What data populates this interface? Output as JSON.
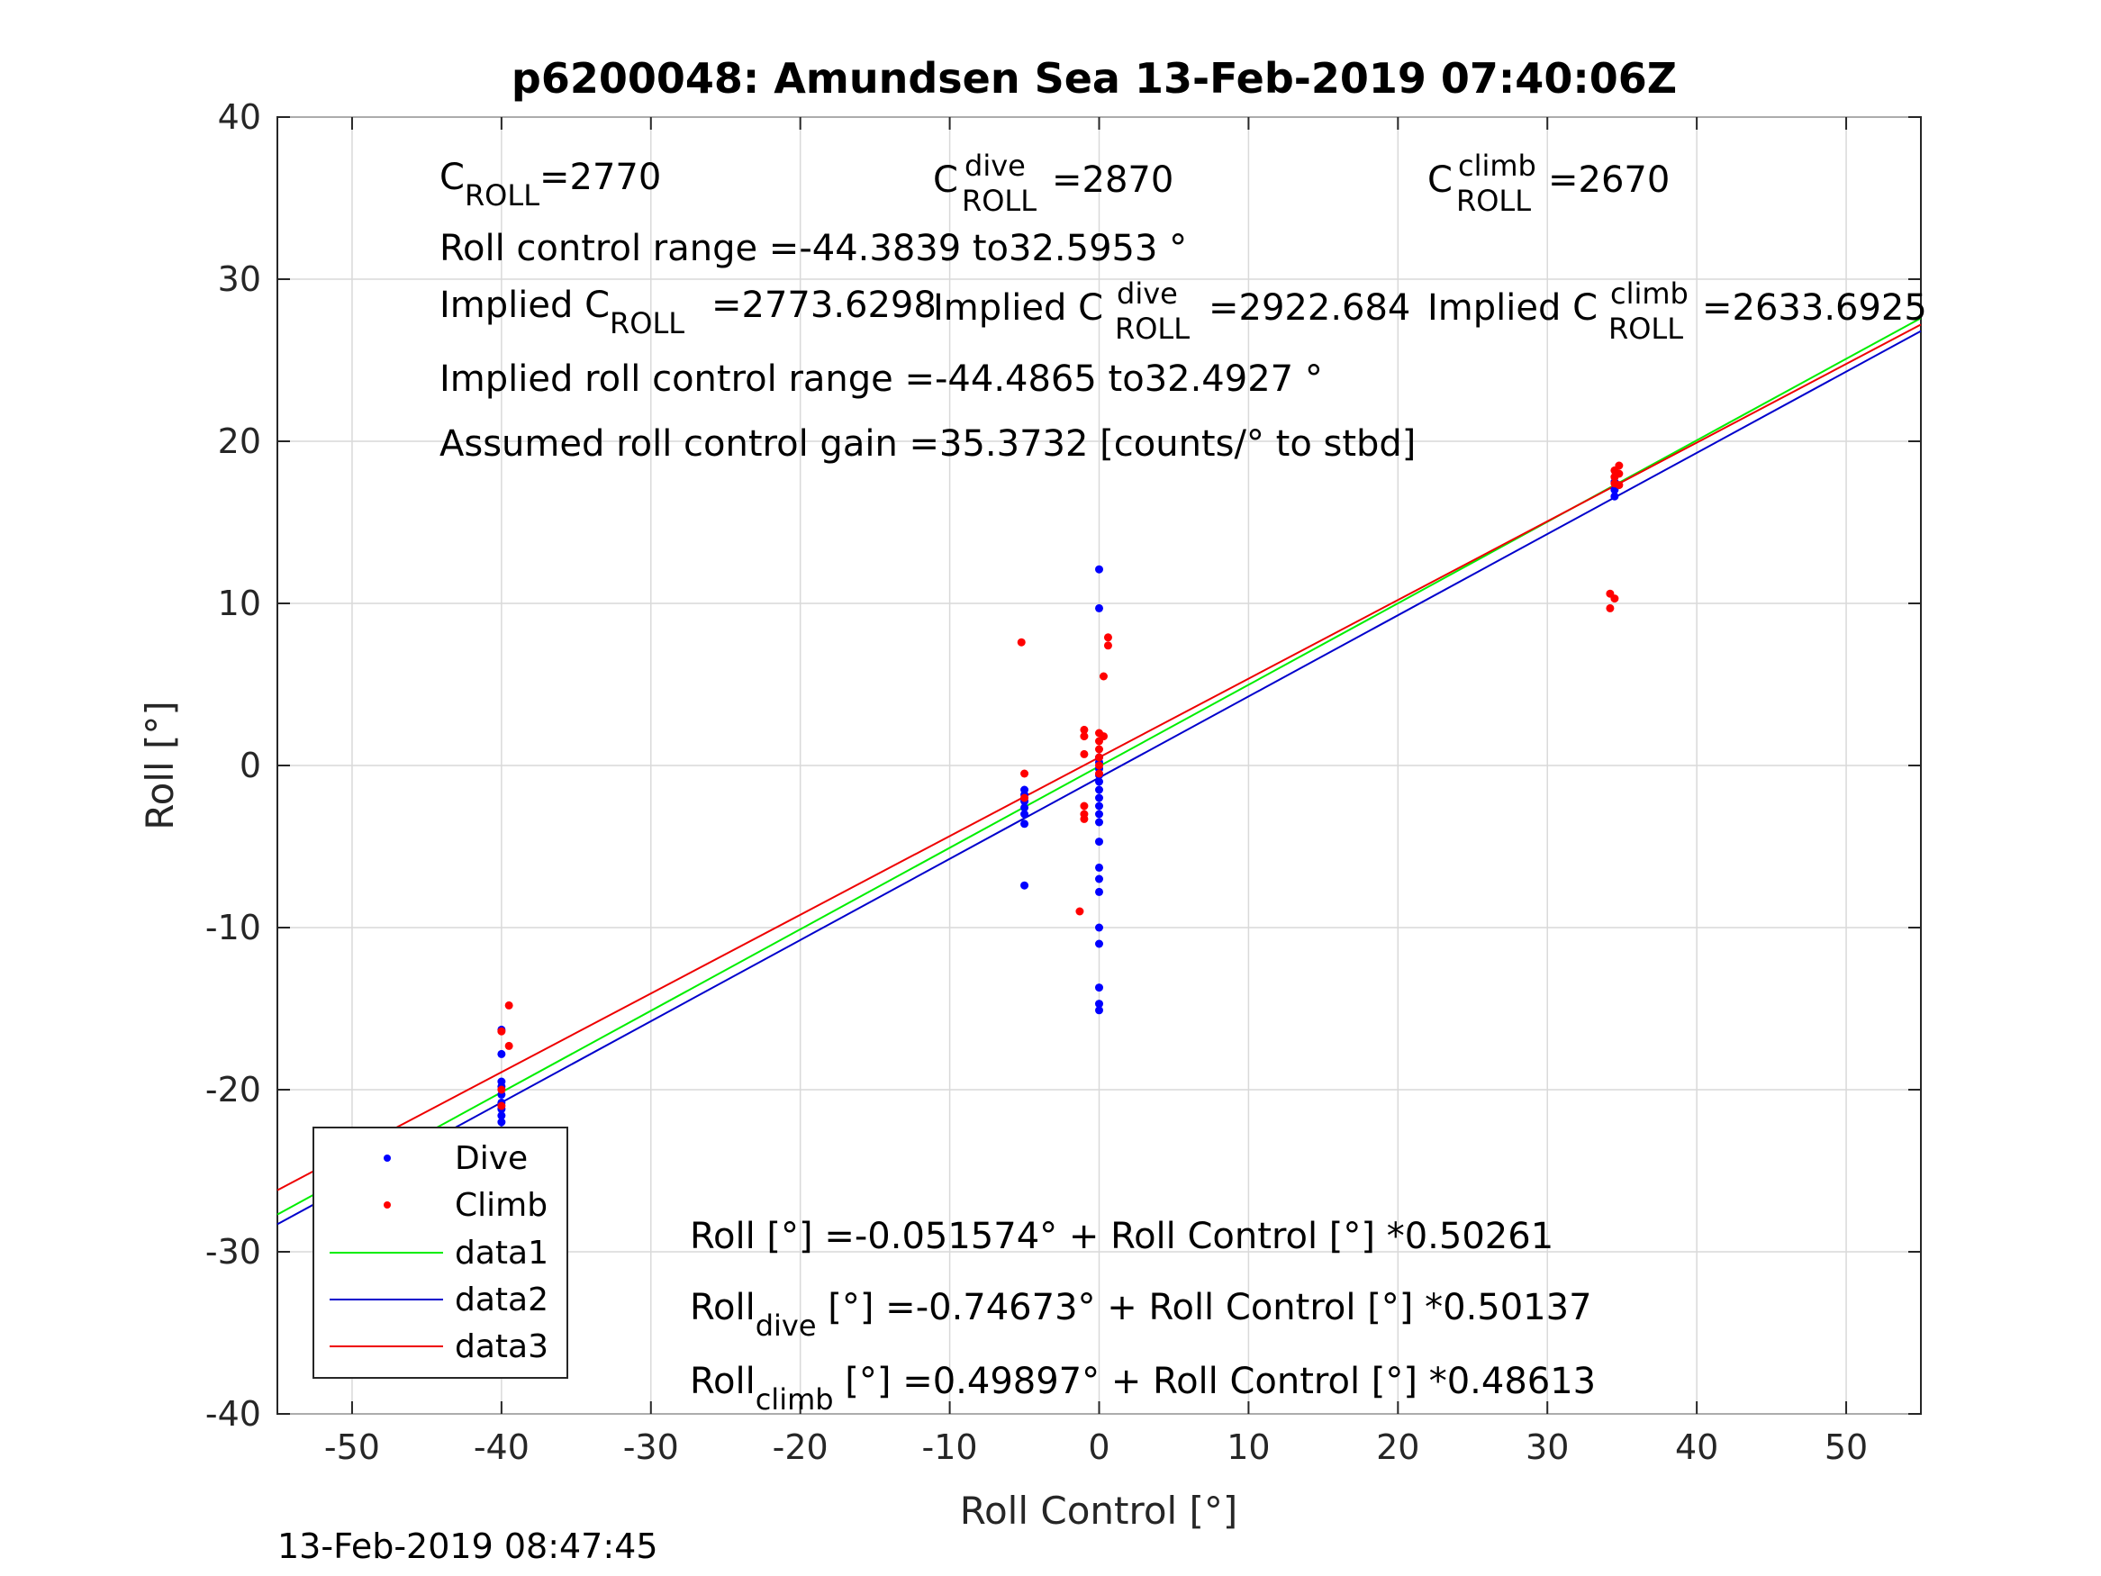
{
  "title": "p6200048: Amundsen Sea 13-Feb-2019 07:40:06Z",
  "timestamp": "13-Feb-2019 08:47:45",
  "annotations": {
    "c_roll": {
      "base": "C",
      "sub": "ROLL",
      "value": "=2770"
    },
    "c_roll_dive": {
      "base": "C",
      "sup": "dive",
      "sub": "ROLL",
      "value": "=2870"
    },
    "c_roll_climb": {
      "base": "C",
      "sup": "climb",
      "sub": "ROLL",
      "value": "=2670"
    },
    "roll_control_range": "Roll control range =-44.3839 to32.5953 °",
    "implied_c_roll": {
      "prefix": "Implied C",
      "sub": "ROLL",
      "value": "=2773.6298"
    },
    "implied_c_roll_dive": {
      "prefix": "Implied C",
      "sup": "dive",
      "sub": "ROLL",
      "value": "=2922.684"
    },
    "implied_c_roll_climb": {
      "prefix": "Implied C",
      "sup": "climb",
      "sub": "ROLL",
      "value": "=2633.6925"
    },
    "implied_range": "Implied roll control range =-44.4865 to32.4927 °",
    "assumed_gain": "Assumed roll control gain =35.3732 [counts/° to stbd]",
    "fit_all": "Roll [°] =-0.051574° + Roll Control [°] *0.50261",
    "fit_dive": {
      "base": "Roll",
      "sub": "dive",
      "rest": " [°] =-0.74673° + Roll Control [°] *0.50137"
    },
    "fit_climb": {
      "base": "Roll",
      "sub": "climb",
      "rest": " [°] =0.49897° + Roll Control [°] *0.48613"
    }
  },
  "chart_data": {
    "type": "scatter",
    "xlabel": "Roll Control [°]",
    "ylabel": "Roll [°]",
    "xlim": [
      -55,
      55
    ],
    "ylim": [
      -40,
      40
    ],
    "xticks": [
      -50,
      -40,
      -30,
      -20,
      -10,
      0,
      10,
      20,
      30,
      40,
      50
    ],
    "yticks": [
      -40,
      -30,
      -20,
      -10,
      0,
      10,
      20,
      30,
      40
    ],
    "grid": true,
    "legend_position": "bottom-left",
    "series": [
      {
        "name": "Dive",
        "kind": "points",
        "color": "#0000ff",
        "points": [
          [
            -40,
            -16.3
          ],
          [
            -40,
            -17.8
          ],
          [
            -40,
            -19.5
          ],
          [
            -40,
            -19.8
          ],
          [
            -40,
            -20.3
          ],
          [
            -40,
            -20.8
          ],
          [
            -40,
            -21.2
          ],
          [
            -40,
            -21.6
          ],
          [
            -40,
            -22.0
          ],
          [
            -40,
            -22.5
          ],
          [
            -40,
            -22.9
          ],
          [
            -40,
            -23.3
          ],
          [
            -40,
            -24.0
          ],
          [
            -40,
            -24.5
          ],
          [
            -5,
            -1.5
          ],
          [
            -5,
            -1.8
          ],
          [
            -5,
            -2.2
          ],
          [
            -5,
            -2.6
          ],
          [
            -5,
            -3.0
          ],
          [
            -5,
            -3.6
          ],
          [
            -5,
            -7.4
          ],
          [
            0,
            12.1
          ],
          [
            0,
            9.7
          ],
          [
            0,
            0.5
          ],
          [
            0,
            0.2
          ],
          [
            0,
            -0.2
          ],
          [
            0,
            -0.6
          ],
          [
            0,
            -1.0
          ],
          [
            0,
            -1.5
          ],
          [
            0,
            -2.0
          ],
          [
            0,
            -2.5
          ],
          [
            0,
            -3.0
          ],
          [
            0,
            -3.5
          ],
          [
            0,
            -4.7
          ],
          [
            0,
            -6.3
          ],
          [
            0,
            -7.0
          ],
          [
            0,
            -7.8
          ],
          [
            0,
            -10.0
          ],
          [
            0,
            -11.0
          ],
          [
            0,
            -13.7
          ],
          [
            0,
            -14.7
          ],
          [
            0,
            -15.1
          ],
          [
            34.5,
            17.5
          ],
          [
            34.5,
            17.0
          ],
          [
            34.5,
            16.6
          ]
        ]
      },
      {
        "name": "Climb",
        "kind": "points",
        "color": "#ff0000",
        "points": [
          [
            -39.5,
            -14.8
          ],
          [
            -40,
            -16.4
          ],
          [
            -39.5,
            -17.3
          ],
          [
            -40,
            -20.0
          ],
          [
            -40,
            -21.0
          ],
          [
            -40,
            -24.3
          ],
          [
            -40,
            -25.0
          ],
          [
            -40,
            -28.0
          ],
          [
            -5.2,
            7.6
          ],
          [
            -5,
            -0.5
          ],
          [
            -5,
            -2.0
          ],
          [
            -1,
            -3.3
          ],
          [
            -1,
            -3.0
          ],
          [
            -1,
            -2.5
          ],
          [
            -1,
            2.2
          ],
          [
            -1,
            1.8
          ],
          [
            -1,
            0.7
          ],
          [
            -1.3,
            -9.0
          ],
          [
            0,
            2.0
          ],
          [
            0,
            1.5
          ],
          [
            0,
            1.0
          ],
          [
            0,
            0.5
          ],
          [
            0,
            0.0
          ],
          [
            0,
            -0.5
          ],
          [
            0.3,
            1.8
          ],
          [
            0.6,
            7.9
          ],
          [
            0.6,
            7.4
          ],
          [
            0.3,
            5.5
          ],
          [
            34.2,
            10.6
          ],
          [
            34.2,
            9.7
          ],
          [
            34.5,
            10.3
          ],
          [
            34.5,
            18.2
          ],
          [
            34.5,
            17.8
          ],
          [
            34.5,
            17.4
          ],
          [
            34.8,
            18.5
          ],
          [
            34.8,
            18.0
          ],
          [
            34.8,
            17.3
          ]
        ]
      },
      {
        "name": "data1",
        "kind": "line",
        "color": "#00ee00",
        "points": [
          [
            -55,
            -27.7
          ],
          [
            55,
            27.6
          ]
        ]
      },
      {
        "name": "data2",
        "kind": "line",
        "color": "#0000cc",
        "points": [
          [
            -55,
            -28.3
          ],
          [
            55,
            26.8
          ]
        ]
      },
      {
        "name": "data3",
        "kind": "line",
        "color": "#ee0000",
        "points": [
          [
            -55,
            -26.2
          ],
          [
            55,
            27.2
          ]
        ]
      }
    ]
  }
}
